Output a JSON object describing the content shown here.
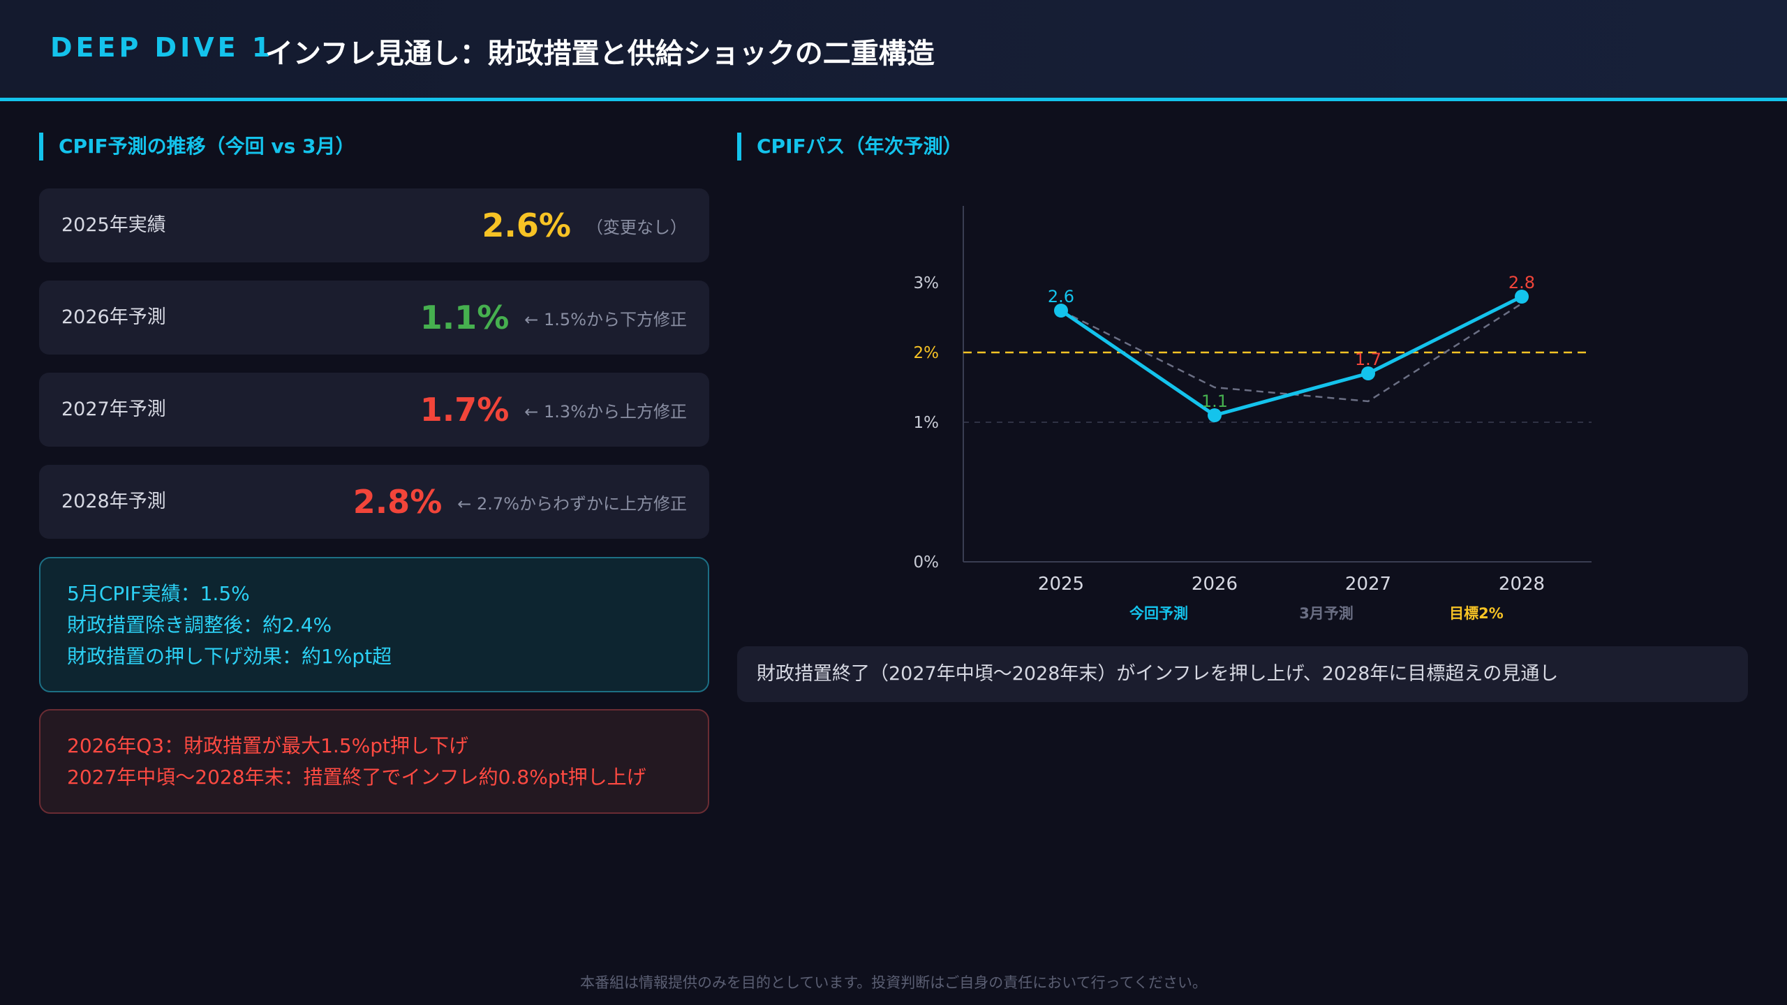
{
  "header": {
    "tag": "DEEP DIVE 1",
    "title": "インフレ見通し：財政措置と供給ショックの二重構造"
  },
  "left": {
    "section_title": "CPIF予測の推移（今回 vs 3月）",
    "cards": [
      {
        "label": "2025年実績",
        "value": "2.6%",
        "note": "（変更なし）",
        "color": "#f7c325"
      },
      {
        "label": "2026年予測",
        "value": "1.1%",
        "note": "← 1.5%から下方修正",
        "color": "#46b04f"
      },
      {
        "label": "2027年予測",
        "value": "1.7%",
        "note": "← 1.3%から上方修正",
        "color": "#f2453a"
      },
      {
        "label": "2028年予測",
        "value": "2.8%",
        "note": "← 2.7%からわずかに上方修正",
        "color": "#f2453a"
      }
    ],
    "info_box": {
      "line1": "5月CPIF実績：1.5%",
      "line2": "財政措置除き調整後：約2.4%",
      "line3": "財政措置の押し下げ効果：約1%pt超"
    },
    "alert_box": {
      "line1": "2026年Q3：財政措置が最大1.5%pt押し下げ",
      "line2": "2027年中頃〜2028年末：措置終了でインフレ約0.8%pt押し上げ"
    }
  },
  "right": {
    "section_title": "CPIFパス（年次予測）",
    "caption": "財政措置終了（2027年中頃〜2028年末）がインフレを押し上げ、2028年に目標超えの見通し"
  },
  "footer": "本番組は情報提供のみを目的としています。投資判断はご自身の責任において行ってください。",
  "chart_data": {
    "type": "line",
    "x": [
      "2025",
      "2026",
      "2027",
      "2028"
    ],
    "series": [
      {
        "name": "今回予測",
        "values": [
          2.6,
          1.1,
          1.7,
          2.8
        ],
        "color": "#14c3ec",
        "point_labels": [
          "2.6",
          "1.1",
          "1.7",
          "2.8"
        ]
      },
      {
        "name": "3月予測",
        "values": [
          2.6,
          1.5,
          1.3,
          2.7
        ],
        "color": "#6b6f84"
      }
    ],
    "reference_lines": [
      {
        "name": "目標2%",
        "value": 2,
        "color": "#f7c325"
      }
    ],
    "y_ticks": [
      {
        "label": "0%",
        "value": 0
      },
      {
        "label": "1%",
        "value": 1
      },
      {
        "label": "2%",
        "value": 2
      },
      {
        "label": "3%",
        "value": 3
      }
    ],
    "ylim": [
      0,
      3
    ]
  }
}
